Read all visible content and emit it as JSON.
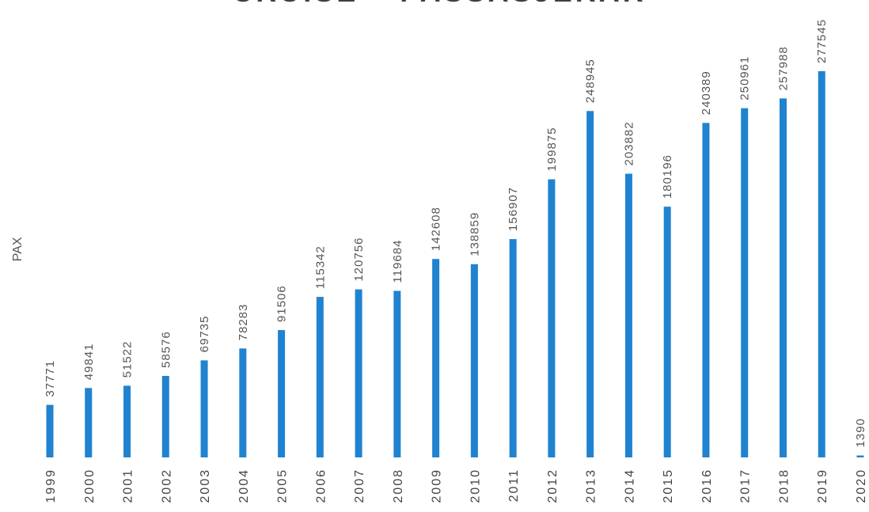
{
  "chart_data": {
    "type": "bar",
    "title": "CRUISE – PASSASJERAR",
    "y_label": "PAX",
    "categories": [
      "1999",
      "2000",
      "2001",
      "2002",
      "2003",
      "2004",
      "2005",
      "2006",
      "2007",
      "2008",
      "2009",
      "2010",
      "2011",
      "2012",
      "2013",
      "2014",
      "2015",
      "2016",
      "2017",
      "2018",
      "2019",
      "2020"
    ],
    "values": [
      37771,
      49841,
      51522,
      58576,
      69735,
      78283,
      91506,
      115342,
      120756,
      119684,
      142608,
      138859,
      156907,
      199875,
      248945,
      203882,
      180196,
      240389,
      250961,
      257988,
      277545,
      1390
    ],
    "color": "#1f83d0"
  }
}
